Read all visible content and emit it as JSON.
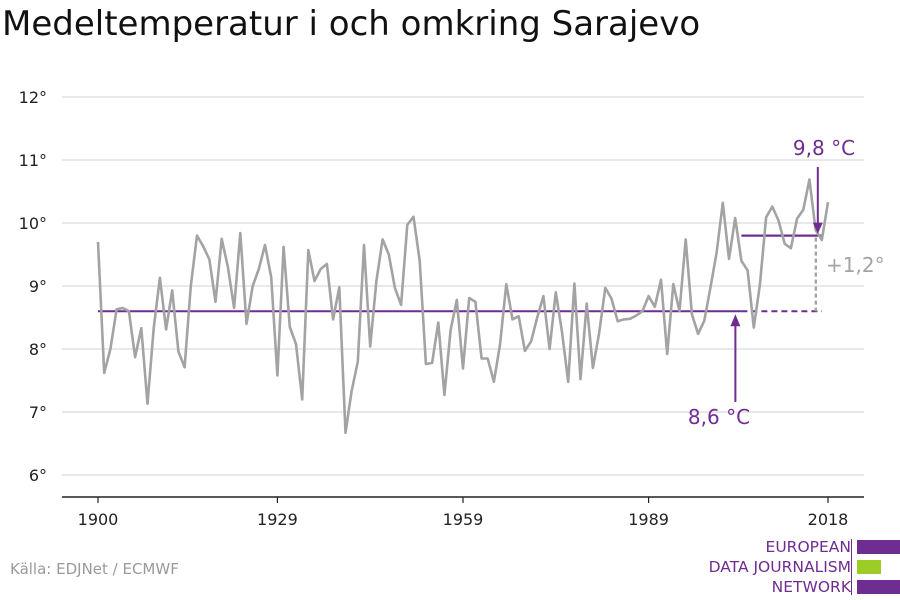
{
  "title": "Medeltemperatur i och omkring Sarajevo",
  "source": "Källa: EDJNet / ECMWF",
  "logo": {
    "lines": [
      "EUROPEAN",
      "DATA JOURNALISM",
      "NETWORK"
    ],
    "colors": [
      "#6f2c91",
      "#9ccc26",
      "#6f2c91"
    ]
  },
  "colors": {
    "series": "#a3a3a3",
    "accent": "#6f2c91",
    "grid": "#dcdcdc",
    "axis": "#222222",
    "diff": "#a3a3a3"
  },
  "chart_data": {
    "type": "line",
    "title": "Medeltemperatur i och omkring Sarajevo",
    "xlim": [
      1900,
      2018
    ],
    "ylim": [
      6,
      12
    ],
    "x_ticks": [
      1900,
      1929,
      1959,
      1989,
      2018
    ],
    "y_ticks": [
      6,
      7,
      8,
      9,
      10,
      11,
      12
    ],
    "y_tick_labels": [
      "6°",
      "7°",
      "8°",
      "9°",
      "10°",
      "11°",
      "12°"
    ],
    "grid": true,
    "x": [
      1900,
      1901,
      1902,
      1903,
      1904,
      1905,
      1906,
      1907,
      1908,
      1909,
      1910,
      1911,
      1912,
      1913,
      1914,
      1915,
      1916,
      1917,
      1918,
      1919,
      1920,
      1921,
      1922,
      1923,
      1924,
      1925,
      1926,
      1927,
      1928,
      1929,
      1930,
      1931,
      1932,
      1933,
      1934,
      1935,
      1936,
      1937,
      1938,
      1939,
      1940,
      1941,
      1942,
      1943,
      1944,
      1945,
      1946,
      1947,
      1948,
      1949,
      1950,
      1951,
      1952,
      1953,
      1954,
      1955,
      1956,
      1957,
      1958,
      1959,
      1960,
      1961,
      1962,
      1963,
      1964,
      1965,
      1966,
      1967,
      1968,
      1969,
      1970,
      1971,
      1972,
      1973,
      1974,
      1975,
      1976,
      1977,
      1978,
      1979,
      1980,
      1981,
      1982,
      1983,
      1984,
      1985,
      1986,
      1987,
      1988,
      1989,
      1990,
      1991,
      1992,
      1993,
      1994,
      1995,
      1996,
      1997,
      1998,
      1999,
      2000,
      2001,
      2002,
      2003,
      2004,
      2005,
      2006,
      2007,
      2008,
      2009,
      2010,
      2011,
      2012,
      2013,
      2014,
      2015,
      2016,
      2017,
      2018
    ],
    "series": [
      {
        "values": [
          9.7,
          7.62,
          8.0,
          8.63,
          8.65,
          8.6,
          7.87,
          8.33,
          7.13,
          8.33,
          9.13,
          8.31,
          8.93,
          7.96,
          7.71,
          9.0,
          9.8,
          9.63,
          9.42,
          8.75,
          9.75,
          9.3,
          8.65,
          9.84,
          8.4,
          9.0,
          9.27,
          9.65,
          9.14,
          7.58,
          9.62,
          8.35,
          8.08,
          7.2,
          9.57,
          9.08,
          9.27,
          9.35,
          8.47,
          8.98,
          6.67,
          7.33,
          7.8,
          9.65,
          8.04,
          9.08,
          9.74,
          9.5,
          8.97,
          8.7,
          9.97,
          10.1,
          9.4,
          7.76,
          7.78,
          8.42,
          7.27,
          8.3,
          8.78,
          7.69,
          8.81,
          8.75,
          7.85,
          7.85,
          7.48,
          8.08,
          9.03,
          8.47,
          8.52,
          7.97,
          8.12,
          8.5,
          8.84,
          8.0,
          8.9,
          8.27,
          7.48,
          9.04,
          7.52,
          8.72,
          7.7,
          8.25,
          8.97,
          8.8,
          8.44,
          8.47,
          8.48,
          8.53,
          8.6,
          8.84,
          8.67,
          9.1,
          7.92,
          9.03,
          8.6,
          9.74,
          8.55,
          8.24,
          8.45,
          8.98,
          9.53,
          10.32,
          9.43,
          10.08,
          9.4,
          9.25,
          8.34,
          9.02,
          10.09,
          10.26,
          10.04,
          9.67,
          9.6,
          10.07,
          10.21,
          10.69,
          9.89,
          9.73,
          10.33
        ]
      }
    ],
    "baseline": {
      "value": 8.6,
      "label": "8,6 °C",
      "from": 1900,
      "to": 2004
    },
    "baseline_extension": {
      "value": 8.6,
      "from": 2004,
      "to": 2017
    },
    "recent": {
      "value": 9.8,
      "label": "9,8 °C",
      "from": 2004,
      "to": 2017
    },
    "difference": {
      "label": "+1,2°",
      "at": 2017
    }
  }
}
